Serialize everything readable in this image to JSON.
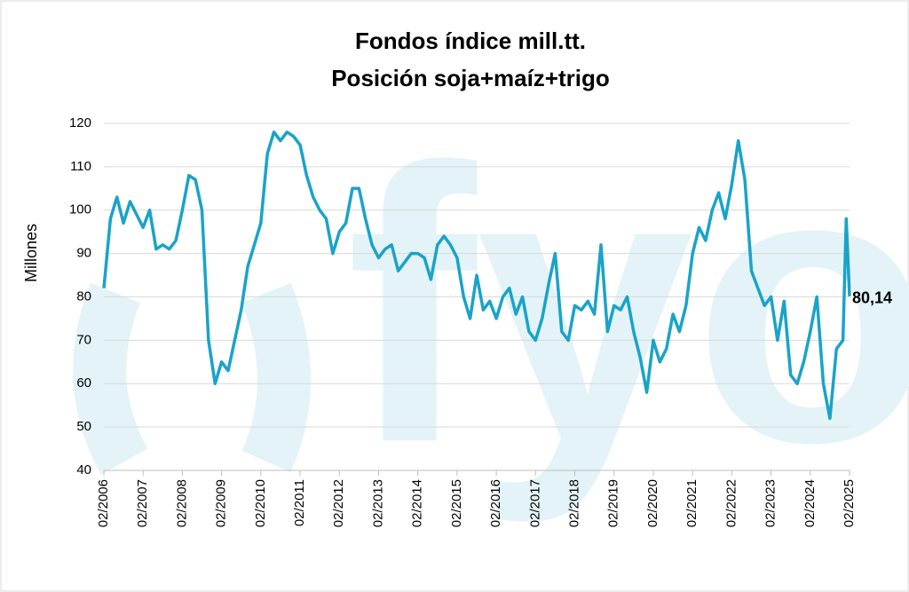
{
  "chart_data": {
    "type": "line",
    "title": [
      "Fondos índice mill.tt.",
      "Posición soja+maíz+trigo"
    ],
    "y_label": "Millones",
    "watermark": "fyo",
    "x": [
      "02/2006",
      "04/2006",
      "06/2006",
      "08/2006",
      "10/2006",
      "12/2006",
      "02/2007",
      "04/2007",
      "06/2007",
      "08/2007",
      "10/2007",
      "12/2007",
      "02/2008",
      "04/2008",
      "06/2008",
      "08/2008",
      "10/2008",
      "12/2008",
      "02/2009",
      "04/2009",
      "06/2009",
      "08/2009",
      "10/2009",
      "12/2009",
      "02/2010",
      "04/2010",
      "06/2010",
      "08/2010",
      "10/2010",
      "12/2010",
      "02/2011",
      "04/2011",
      "06/2011",
      "08/2011",
      "10/2011",
      "12/2011",
      "02/2012",
      "04/2012",
      "06/2012",
      "08/2012",
      "10/2012",
      "12/2012",
      "02/2013",
      "04/2013",
      "06/2013",
      "08/2013",
      "10/2013",
      "12/2013",
      "02/2014",
      "04/2014",
      "06/2014",
      "08/2014",
      "10/2014",
      "12/2014",
      "02/2015",
      "04/2015",
      "06/2015",
      "08/2015",
      "10/2015",
      "12/2015",
      "02/2016",
      "04/2016",
      "06/2016",
      "08/2016",
      "10/2016",
      "12/2016",
      "02/2017",
      "04/2017",
      "06/2017",
      "08/2017",
      "10/2017",
      "12/2017",
      "02/2018",
      "04/2018",
      "06/2018",
      "08/2018",
      "10/2018",
      "12/2018",
      "02/2019",
      "04/2019",
      "06/2019",
      "08/2019",
      "10/2019",
      "12/2019",
      "02/2020",
      "04/2020",
      "06/2020",
      "08/2020",
      "10/2020",
      "12/2020",
      "02/2021",
      "04/2021",
      "06/2021",
      "08/2021",
      "10/2021",
      "12/2021",
      "02/2022",
      "04/2022",
      "06/2022",
      "08/2022",
      "10/2022",
      "12/2022",
      "02/2023",
      "04/2023",
      "06/2023",
      "08/2023",
      "10/2023",
      "12/2023",
      "02/2024",
      "04/2024",
      "06/2024",
      "08/2024",
      "10/2024",
      "12/2024",
      "01/2025",
      "02/2025"
    ],
    "series": [
      {
        "name": "Posición soja+maíz+trigo",
        "color": "#1aa3c8",
        "values": [
          82,
          98,
          103,
          97,
          102,
          99,
          96,
          100,
          91,
          92,
          91,
          93,
          100,
          108,
          107,
          100,
          70,
          60,
          65,
          63,
          70,
          77,
          87,
          92,
          97,
          113,
          118,
          116,
          118,
          117,
          115,
          108,
          103,
          100,
          98,
          90,
          95,
          97,
          105,
          105,
          98,
          92,
          89,
          91,
          92,
          86,
          88,
          90,
          90,
          89,
          84,
          92,
          94,
          92,
          89,
          80,
          75,
          85,
          77,
          79,
          75,
          80,
          82,
          76,
          80,
          72,
          70,
          75,
          83,
          90,
          72,
          70,
          78,
          77,
          79,
          76,
          92,
          72,
          78,
          77,
          80,
          72,
          66,
          58,
          70,
          65,
          68,
          76,
          72,
          78,
          90,
          96,
          93,
          100,
          104,
          98,
          106,
          116,
          107,
          86,
          82,
          78,
          80,
          70,
          79,
          62,
          60,
          65,
          72,
          80,
          60,
          52,
          68,
          70,
          98,
          80.14
        ],
        "value_labels": [
          null,
          null,
          null,
          null,
          null,
          null,
          null,
          null,
          null,
          null,
          null,
          null,
          null,
          null,
          null,
          null,
          null,
          null,
          null,
          null,
          null,
          null,
          null,
          null,
          null,
          null,
          null,
          null,
          null,
          null,
          null,
          null,
          null,
          null,
          null,
          null,
          null,
          null,
          null,
          null,
          null,
          null,
          null,
          null,
          null,
          null,
          null,
          null,
          null,
          null,
          null,
          null,
          null,
          null,
          null,
          null,
          null,
          null,
          null,
          null,
          null,
          null,
          null,
          null,
          null,
          null,
          null,
          null,
          null,
          null,
          null,
          null,
          null,
          null,
          null,
          null,
          null,
          null,
          null,
          null,
          null,
          null,
          null,
          null,
          null,
          null,
          null,
          null,
          null,
          null,
          null,
          null,
          null,
          null,
          null,
          null,
          null,
          null,
          null,
          null,
          null,
          null,
          null,
          null,
          null,
          null,
          null,
          null,
          null,
          null,
          null,
          null,
          null,
          null,
          null,
          "80,14"
        ]
      }
    ],
    "xlim": [
      "02/2006",
      "02/2025"
    ],
    "xticks": [
      "02/2006",
      "02/2007",
      "02/2008",
      "02/2009",
      "02/2010",
      "02/2011",
      "02/2012",
      "02/2013",
      "02/2014",
      "02/2015",
      "02/2016",
      "02/2017",
      "02/2018",
      "02/2019",
      "02/2020",
      "02/2021",
      "02/2022",
      "02/2023",
      "02/2024",
      "02/2025"
    ],
    "ylim": [
      40,
      120
    ],
    "yticks": [
      40,
      50,
      60,
      70,
      80,
      90,
      100,
      110,
      120
    ],
    "grid": true
  }
}
